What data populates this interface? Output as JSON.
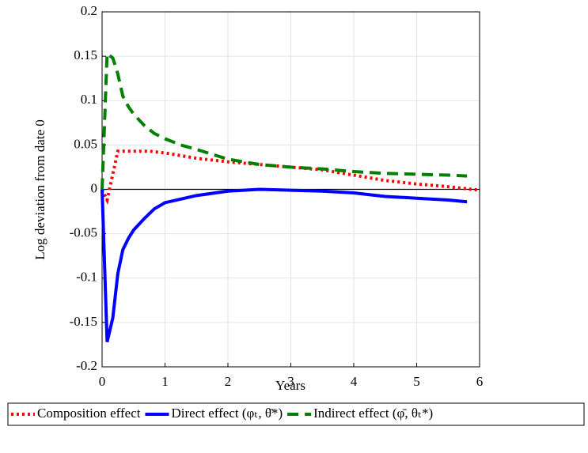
{
  "chart_data": {
    "type": "line",
    "x_label": "Years",
    "y_label": "Log deviation from date 0",
    "xlim": [
      0,
      6
    ],
    "ylim": [
      -0.2,
      0.2
    ],
    "xticks": [
      0,
      1,
      2,
      3,
      4,
      5,
      6
    ],
    "yticks": [
      0.2,
      0.15,
      0.1,
      0.05,
      0,
      -0.05,
      -0.1,
      -0.15,
      -0.2
    ],
    "grid": true,
    "legend": "bottom",
    "series": [
      {
        "name": "Composition effect",
        "color": "#ff0000",
        "style": "dotted",
        "x": [
          0,
          0.08,
          0.25,
          0.5,
          0.75,
          1,
          1.5,
          2,
          2.5,
          3,
          3.5,
          4,
          4.5,
          5,
          5.5,
          6
        ],
        "values": [
          0,
          -0.012,
          0.043,
          0.043,
          0.043,
          0.041,
          0.035,
          0.031,
          0.028,
          0.025,
          0.022,
          0.016,
          0.01,
          0.006,
          0.003,
          -0.001
        ]
      },
      {
        "name": "Direct effect (φₜ, θ̄*)",
        "color": "#0000ff",
        "style": "solid",
        "x": [
          0,
          0.08,
          0.17,
          0.25,
          0.33,
          0.42,
          0.5,
          0.67,
          0.83,
          1,
          1.5,
          2,
          2.5,
          3,
          3.5,
          4,
          4.5,
          5,
          5.5,
          5.8
        ],
        "values": [
          0,
          -0.172,
          -0.145,
          -0.095,
          -0.068,
          -0.055,
          -0.046,
          -0.033,
          -0.022,
          -0.015,
          -0.007,
          -0.002,
          0,
          -0.001,
          -0.002,
          -0.004,
          -0.008,
          -0.01,
          -0.012,
          -0.014
        ]
      },
      {
        "name": "Indirect effect (φ̄, θₜ*)",
        "color": "#007f00",
        "style": "dashed",
        "x": [
          0,
          0.08,
          0.17,
          0.25,
          0.33,
          0.42,
          0.5,
          0.67,
          0.83,
          1,
          1.25,
          1.5,
          2,
          2.5,
          3,
          3.5,
          4,
          4.5,
          5,
          5.5,
          5.8
        ],
        "values": [
          0,
          0.153,
          0.148,
          0.13,
          0.105,
          0.093,
          0.085,
          0.072,
          0.063,
          0.057,
          0.05,
          0.045,
          0.034,
          0.028,
          0.025,
          0.023,
          0.02,
          0.018,
          0.017,
          0.016,
          0.015
        ]
      }
    ]
  }
}
